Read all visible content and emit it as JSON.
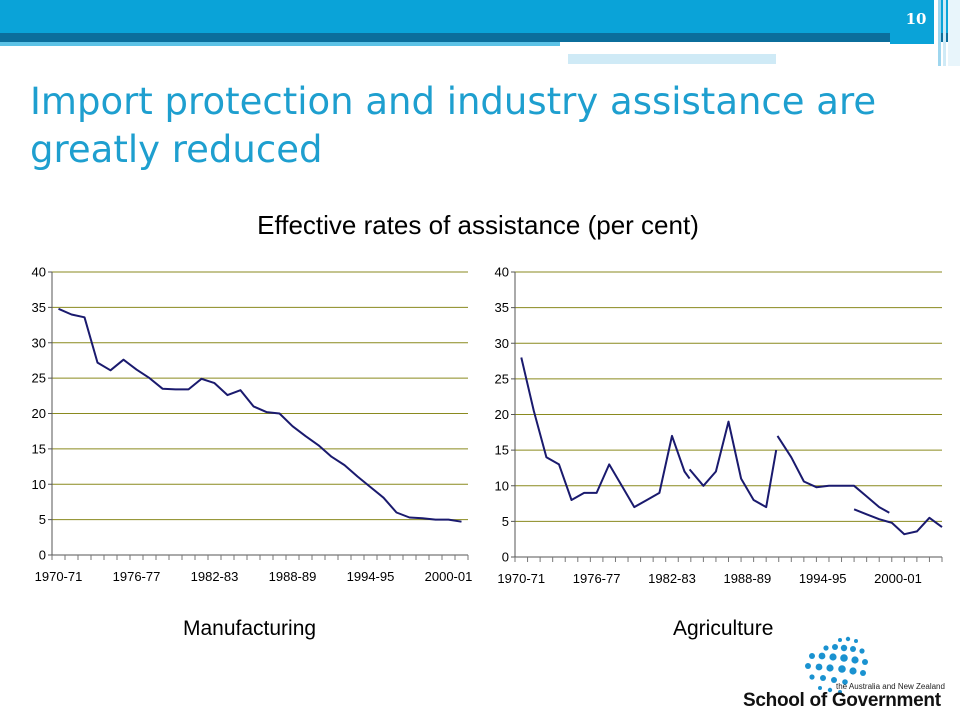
{
  "slide": {
    "number": "10",
    "title": "Import protection and industry assistance are greatly reduced",
    "chart_heading": "Effective rates of assistance (per cent)",
    "colors": {
      "title": "#1e9fcf",
      "banner": "#0aa3d8",
      "banner_dark": "#0b78a8",
      "series": "#1a1a6e",
      "grid": "#8a8a1f"
    }
  },
  "logo": {
    "line1": "the Australia and New Zealand",
    "line2": "School of Government"
  },
  "chart_data": [
    {
      "type": "line",
      "label": "Manufacturing",
      "ylim": [
        0,
        40
      ],
      "yticks": [
        "0",
        "5",
        "10",
        "15",
        "20",
        "25",
        "30",
        "35",
        "40"
      ],
      "xticks": [
        "1970-71",
        "1976-77",
        "1982-83",
        "1988-89",
        "1994-95",
        "2000-01"
      ],
      "grid": "horizontal",
      "x": [
        "1970-71",
        "1971-72",
        "1972-73",
        "1973-74",
        "1974-75",
        "1975-76",
        "1976-77",
        "1977-78",
        "1978-79",
        "1979-80",
        "1980-81",
        "1981-82",
        "1982-83",
        "1983-84",
        "1984-85",
        "1985-86",
        "1986-87",
        "1987-88",
        "1988-89",
        "1989-90",
        "1990-91",
        "1991-92",
        "1992-93",
        "1993-94",
        "1994-95",
        "1995-96",
        "1996-97",
        "1997-98",
        "1998-99",
        "1999-00",
        "2000-01",
        "2001-02"
      ],
      "series": [
        {
          "values": [
            34.8,
            34.0,
            33.6,
            27.2,
            26.1,
            27.6,
            26.2,
            25.0,
            23.5,
            23.4,
            23.4,
            24.9,
            24.3,
            22.6,
            23.3,
            21.0,
            20.2,
            20.0,
            18.2,
            16.8,
            15.5,
            13.9,
            12.7,
            11.1,
            9.6,
            8.1,
            6.0,
            5.3,
            5.2,
            5.0,
            5.0,
            4.7
          ]
        }
      ]
    },
    {
      "type": "line",
      "label": "Agriculture",
      "ylim": [
        0,
        40
      ],
      "yticks": [
        "0",
        "5",
        "10",
        "15",
        "20",
        "25",
        "30",
        "35",
        "40"
      ],
      "xticks": [
        "1970-71",
        "1976-77",
        "1982-83",
        "1988-89",
        "1994-95",
        "2000-01"
      ],
      "grid": "horizontal",
      "x": [
        "1970-71",
        "1971-72",
        "1972-73",
        "1973-74",
        "1974-75",
        "1975-76",
        "1976-77",
        "1977-78",
        "1978-79",
        "1979-80",
        "1980-81",
        "1981-82",
        "1982-83",
        "1983-84",
        "1984-85",
        "1985-86",
        "1986-87",
        "1987-88",
        "1988-89",
        "1989-90",
        "1990-91",
        "1991-92",
        "1992-93",
        "1993-94",
        "1994-95",
        "1995-96",
        "1996-97",
        "1997-98",
        "1998-99",
        "1999-00",
        "2000-01",
        "2001-02",
        "2002-03",
        "2003-04"
      ],
      "series": [
        {
          "segments": [
            [
              [
                0,
                28
              ],
              [
                1,
                20.5
              ],
              [
                2,
                14
              ],
              [
                3,
                13
              ],
              [
                4,
                8
              ],
              [
                5,
                9
              ],
              [
                6,
                9
              ],
              [
                7,
                13
              ],
              [
                8,
                10
              ],
              [
                9,
                7
              ],
              [
                10,
                8
              ],
              [
                11,
                9
              ],
              [
                12,
                17
              ],
              [
                13,
                12
              ],
              [
                13.4,
                11
              ]
            ],
            [
              [
                13.4,
                12.3
              ],
              [
                14.5,
                10
              ],
              [
                15.5,
                12
              ],
              [
                16.5,
                19
              ],
              [
                17.5,
                11
              ],
              [
                18.5,
                8
              ],
              [
                19.5,
                7
              ],
              [
                20.3,
                15
              ]
            ],
            [
              [
                20.4,
                17
              ],
              [
                21.5,
                14
              ],
              [
                22.5,
                10.6
              ],
              [
                23.5,
                9.8
              ],
              [
                24.5,
                10
              ],
              [
                25.5,
                10
              ],
              [
                26.5,
                10
              ],
              [
                27.5,
                8.5
              ],
              [
                28.5,
                7
              ],
              [
                29.3,
                6.2
              ]
            ],
            [
              [
                26.5,
                6.7
              ],
              [
                27.5,
                6
              ],
              [
                28.5,
                5.3
              ],
              [
                29.5,
                4.8
              ],
              [
                30.5,
                3.2
              ],
              [
                31.5,
                3.6
              ],
              [
                32.5,
                5.5
              ],
              [
                33.5,
                4.2
              ]
            ]
          ]
        }
      ]
    }
  ]
}
